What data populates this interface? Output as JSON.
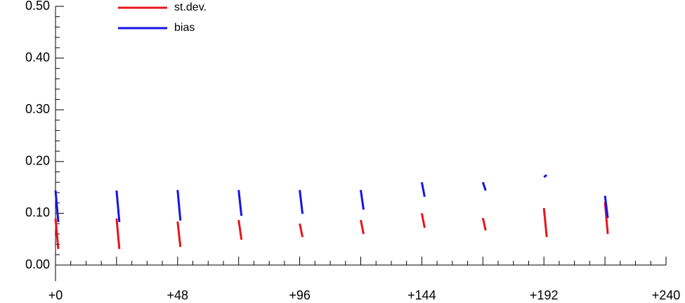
{
  "chart_data": {
    "type": "line",
    "x": [
      0,
      1.1,
      null,
      24,
      25.1,
      null,
      48,
      49.1,
      null,
      72,
      73.1,
      null,
      96,
      97.1,
      null,
      120,
      121.1,
      null,
      144,
      145.1,
      null,
      168,
      169.1,
      null,
      192,
      193.1,
      null,
      216,
      217.1
    ],
    "series": [
      {
        "name": "st.dev.",
        "color": "#e8141c",
        "values": [
          0.09,
          0.031,
          null,
          0.09,
          0.031,
          null,
          0.084,
          0.035,
          null,
          0.087,
          0.049,
          null,
          0.08,
          0.054,
          null,
          0.087,
          0.06,
          null,
          0.1,
          0.072,
          null,
          0.091,
          0.067,
          null,
          0.11,
          0.054,
          null,
          0.122,
          0.06
        ]
      },
      {
        "name": "bias",
        "color": "#1414e8",
        "values": [
          0.144,
          0.083,
          null,
          0.144,
          0.083,
          null,
          0.145,
          0.086,
          null,
          0.145,
          0.095,
          null,
          0.145,
          0.099,
          null,
          0.145,
          0.107,
          null,
          0.16,
          0.132,
          null,
          0.16,
          0.144,
          null,
          0.17,
          0.174,
          null,
          0.134,
          0.091
        ]
      }
    ],
    "xlim": [
      0,
      240
    ],
    "xticks": [
      {
        "value": 0,
        "label": "+0"
      },
      {
        "value": 48,
        "label": "+48"
      },
      {
        "value": 96,
        "label": "+96"
      },
      {
        "value": 144,
        "label": "+144"
      },
      {
        "value": 192,
        "label": "+192"
      },
      {
        "value": 240,
        "label": "+240"
      }
    ],
    "ylim": [
      0,
      0.5
    ],
    "yticks": [
      {
        "value": 0,
        "label": "0.00"
      },
      {
        "value": 0.1,
        "label": "0.10"
      },
      {
        "value": 0.2,
        "label": "0.20"
      },
      {
        "value": 0.3,
        "label": "0.30"
      },
      {
        "value": 0.4,
        "label": "0.40"
      },
      {
        "value": 0.5,
        "label": "0.50"
      }
    ],
    "legend": "upper-left"
  }
}
